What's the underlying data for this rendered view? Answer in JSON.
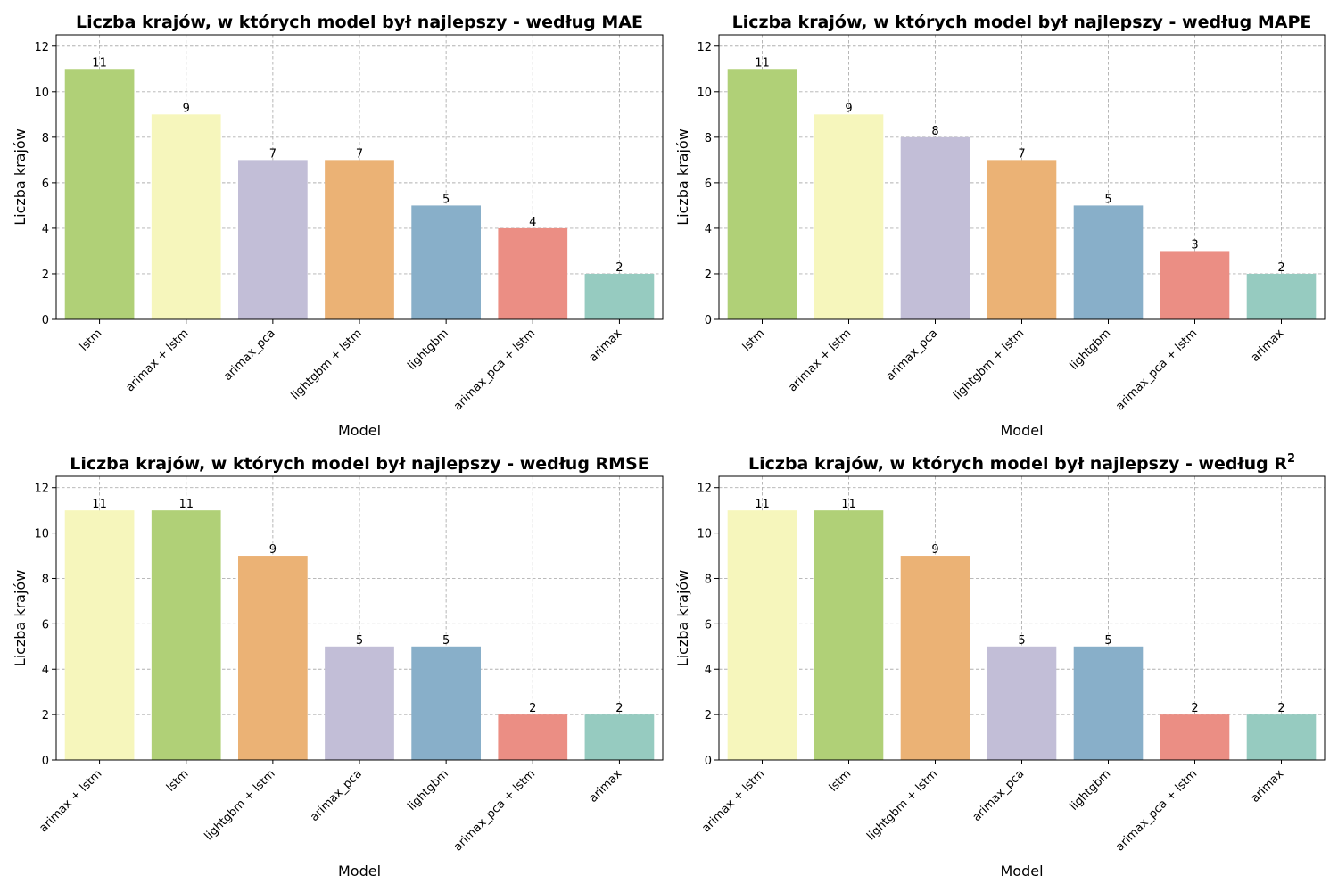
{
  "colors": {
    "lstm": "#b0d077",
    "arimax + lstm": "#f6f6bc",
    "arimax_pca": "#c2bed7",
    "lightgbm + lstm": "#ebb275",
    "lightgbm": "#88afc9",
    "arimax_pca + lstm": "#eb8e84",
    "arimax": "#96cbc0"
  },
  "chart_data": [
    {
      "type": "bar",
      "title": "Liczba krajów, w których model był najlepszy - według MAE",
      "xlabel": "Model",
      "ylabel": "Liczba krajów",
      "categories": [
        "lstm",
        "arimax + lstm",
        "arimax_pca",
        "lightgbm + lstm",
        "lightgbm",
        "arimax_pca + lstm",
        "arimax"
      ],
      "values": [
        11,
        9,
        7,
        7,
        5,
        4,
        2
      ],
      "ylim": [
        0,
        12.5
      ],
      "yticks": [
        0,
        2,
        4,
        6,
        8,
        10,
        12
      ],
      "grid": true
    },
    {
      "type": "bar",
      "title": "Liczba krajów, w których model był najlepszy - według MAPE",
      "xlabel": "Model",
      "ylabel": "Liczba krajów",
      "categories": [
        "lstm",
        "arimax + lstm",
        "arimax_pca",
        "lightgbm + lstm",
        "lightgbm",
        "arimax_pca + lstm",
        "arimax"
      ],
      "values": [
        11,
        9,
        8,
        7,
        5,
        3,
        2
      ],
      "ylim": [
        0,
        12.5
      ],
      "yticks": [
        0,
        2,
        4,
        6,
        8,
        10,
        12
      ],
      "grid": true
    },
    {
      "type": "bar",
      "title": "Liczba krajów, w których model był najlepszy - według RMSE",
      "xlabel": "Model",
      "ylabel": "Liczba krajów",
      "categories": [
        "arimax + lstm",
        "lstm",
        "lightgbm + lstm",
        "arimax_pca",
        "lightgbm",
        "arimax_pca + lstm",
        "arimax"
      ],
      "values": [
        11,
        11,
        9,
        5,
        5,
        2,
        2
      ],
      "ylim": [
        0,
        12.5
      ],
      "yticks": [
        0,
        2,
        4,
        6,
        8,
        10,
        12
      ],
      "grid": true
    },
    {
      "type": "bar",
      "title": "Liczba krajów, w których model był najlepszy - według R",
      "title_sup": "2",
      "xlabel": "Model",
      "ylabel": "Liczba krajów",
      "categories": [
        "arimax + lstm",
        "lstm",
        "lightgbm + lstm",
        "arimax_pca",
        "lightgbm",
        "arimax_pca + lstm",
        "arimax"
      ],
      "values": [
        11,
        11,
        9,
        5,
        5,
        2,
        2
      ],
      "ylim": [
        0,
        12.5
      ],
      "yticks": [
        0,
        2,
        4,
        6,
        8,
        10,
        12
      ],
      "grid": true
    }
  ]
}
